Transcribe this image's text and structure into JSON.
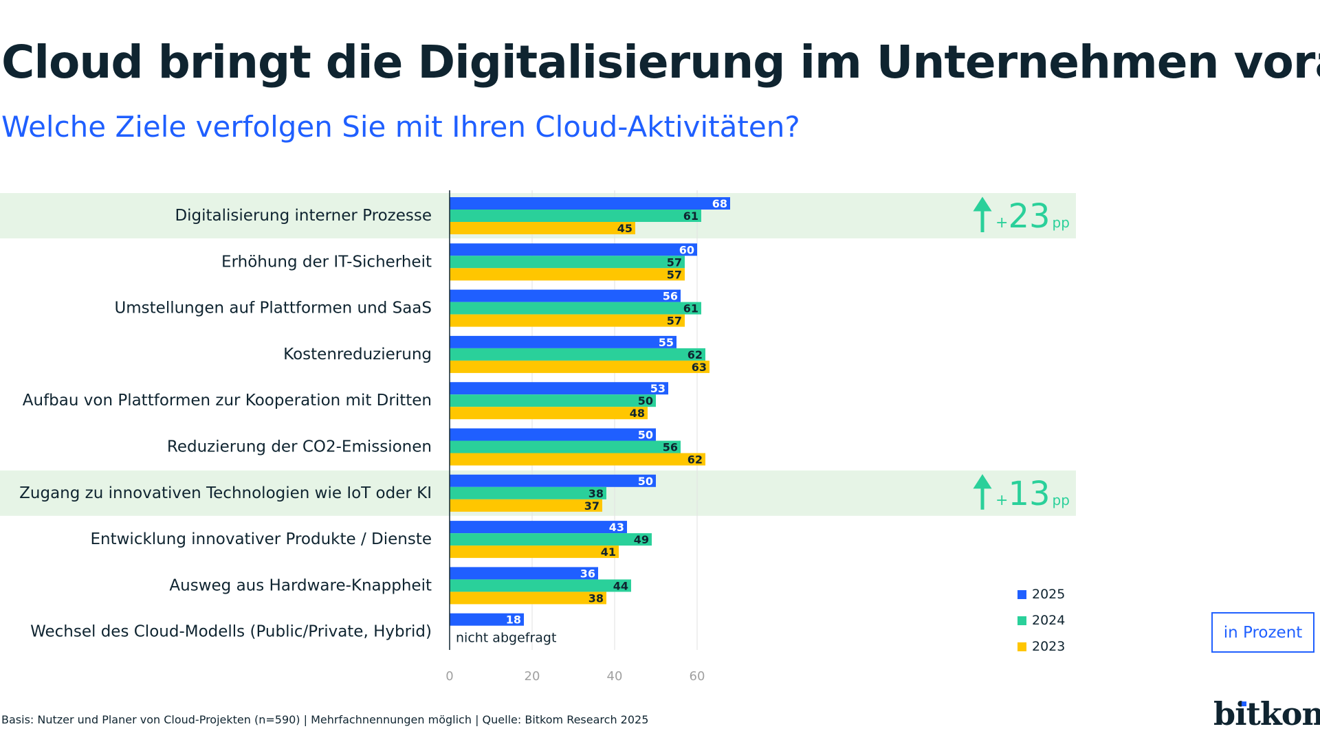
{
  "header": {
    "title": "Cloud bringt die Digitalisierung im Unternehmen voran",
    "subtitle": "Welche Ziele verfolgen Sie mit Ihren Cloud-Aktivitäten?"
  },
  "chart_data": {
    "type": "bar",
    "orientation": "horizontal",
    "categories": [
      "Digitalisierung interner Prozesse",
      "Erhöhung der IT-Sicherheit",
      "Umstellungen auf Plattformen und SaaS",
      "Kostenreduzierung",
      "Aufbau von Plattformen zur Kooperation mit Dritten",
      "Reduzierung der CO2-Emissionen",
      "Zugang zu innovativen Technologien wie IoT oder KI",
      "Entwicklung innovativer Produkte / Dienste",
      "Ausweg aus Hardware-Knappheit",
      "Wechsel des Cloud-Modells (Public/Private, Hybrid)"
    ],
    "series": [
      {
        "name": "2025",
        "color": "#1f5fff",
        "values": [
          68,
          60,
          56,
          55,
          53,
          50,
          50,
          43,
          36,
          18
        ]
      },
      {
        "name": "2024",
        "color": "#2ad09a",
        "values": [
          61,
          57,
          61,
          62,
          50,
          56,
          38,
          49,
          44,
          null
        ]
      },
      {
        "name": "2023",
        "color": "#ffc600",
        "values": [
          45,
          57,
          57,
          63,
          48,
          62,
          37,
          41,
          38,
          null
        ]
      }
    ],
    "xlim": [
      0,
      75
    ],
    "xticks": [
      "0",
      "20",
      "40",
      "60"
    ],
    "grid": true,
    "legend_position": "bottom-right",
    "not_asked_label": "nicht abgefragt",
    "highlights": [
      {
        "row": 0,
        "delta": "+23",
        "unit": "pp",
        "icon": "arrow-up-icon"
      },
      {
        "row": 6,
        "delta": "+13",
        "unit": "pp",
        "icon": "arrow-up-icon"
      }
    ],
    "highlight_color": "#e6f4e6",
    "delta_color": "#2ad09a"
  },
  "unit_label": "in Prozent",
  "footer": "Basis: Nutzer und Planer von Cloud-Projekten (n=590) | Mehrfachnennungen möglich | Quelle: Bitkom Research 2025",
  "logo": "bitkom"
}
